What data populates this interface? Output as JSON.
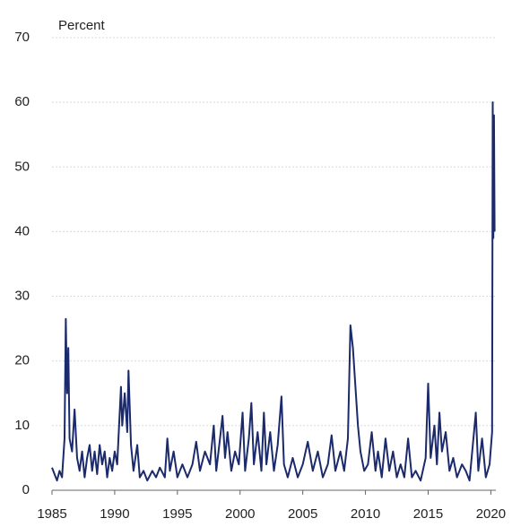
{
  "chart_data": {
    "type": "line",
    "ylabel": "Percent",
    "x": [
      1985.0,
      1985.2,
      1985.4,
      1985.6,
      1985.8,
      1986.0,
      1986.1,
      1986.2,
      1986.3,
      1986.4,
      1986.6,
      1986.8,
      1987.0,
      1987.2,
      1987.4,
      1987.6,
      1987.8,
      1988.0,
      1988.2,
      1988.4,
      1988.6,
      1988.8,
      1989.0,
      1989.2,
      1989.4,
      1989.6,
      1989.8,
      1990.0,
      1990.2,
      1990.5,
      1990.6,
      1990.8,
      1991.0,
      1991.1,
      1991.3,
      1991.5,
      1991.8,
      1992.0,
      1992.3,
      1992.6,
      1993.0,
      1993.3,
      1993.6,
      1994.0,
      1994.2,
      1994.4,
      1994.7,
      1995.0,
      1995.4,
      1995.8,
      1996.2,
      1996.5,
      1996.8,
      1997.2,
      1997.6,
      1997.9,
      1998.1,
      1998.4,
      1998.6,
      1998.8,
      1999.0,
      1999.3,
      1999.6,
      1999.9,
      2000.2,
      2000.4,
      2000.7,
      2000.9,
      2001.1,
      2001.4,
      2001.7,
      2001.9,
      2002.1,
      2002.4,
      2002.7,
      2003.0,
      2003.3,
      2003.5,
      2003.8,
      2004.2,
      2004.6,
      2005.0,
      2005.4,
      2005.8,
      2006.2,
      2006.6,
      2007.0,
      2007.3,
      2007.6,
      2008.0,
      2008.3,
      2008.6,
      2008.8,
      2009.0,
      2009.2,
      2009.4,
      2009.6,
      2009.9,
      2010.2,
      2010.5,
      2010.8,
      2011.0,
      2011.3,
      2011.6,
      2011.9,
      2012.2,
      2012.5,
      2012.8,
      2013.1,
      2013.4,
      2013.7,
      2014.0,
      2014.4,
      2014.8,
      2015.0,
      2015.2,
      2015.5,
      2015.7,
      2015.9,
      2016.1,
      2016.4,
      2016.7,
      2017.0,
      2017.3,
      2017.7,
      2018.0,
      2018.3,
      2018.8,
      2019.0,
      2019.3,
      2019.6,
      2019.9,
      2020.1,
      2020.15,
      2020.2,
      2020.25,
      2020.3
    ],
    "values": [
      3.5,
      2.5,
      1.5,
      3,
      2,
      8,
      26.5,
      15,
      22,
      8,
      6,
      12.5,
      5,
      3,
      6,
      2,
      5,
      7,
      3,
      6,
      2.5,
      7,
      4,
      6,
      2,
      5,
      3,
      6,
      4,
      16,
      10,
      15,
      9,
      18.5,
      7,
      3,
      7,
      2,
      3,
      1.5,
      3,
      2,
      3.5,
      2,
      8,
      3,
      6,
      2,
      4,
      2,
      4,
      7.5,
      3,
      6,
      4,
      10,
      3,
      8,
      11.5,
      5,
      9,
      3,
      6,
      4,
      12,
      3,
      8,
      13.5,
      4,
      9,
      3,
      12,
      4,
      9,
      3,
      7,
      14.5,
      4,
      2,
      5,
      2,
      4,
      7.5,
      3,
      6,
      2,
      4,
      8.5,
      3,
      6,
      3,
      8,
      25.5,
      22,
      16,
      10,
      6,
      3,
      4,
      9,
      3,
      6,
      2,
      8,
      3,
      6,
      2,
      4,
      2,
      8,
      2,
      3,
      1.5,
      5,
      16.5,
      5,
      10,
      4,
      12,
      6,
      9,
      3,
      5,
      2,
      4,
      3,
      1.5,
      12,
      3,
      8,
      2,
      4,
      9,
      60,
      39,
      58,
      40
    ],
    "color": "#1b2a6b",
    "xlim": [
      1985,
      2020.4
    ],
    "xticks": [
      1985,
      1990,
      1995,
      2000,
      2005,
      2010,
      2015,
      2020
    ],
    "ylim": [
      0,
      70
    ],
    "yticks": [
      0,
      10,
      20,
      30,
      40,
      50,
      60,
      70
    ],
    "grid": true
  }
}
